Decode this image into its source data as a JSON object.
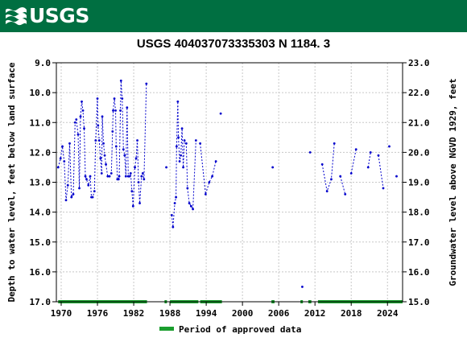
{
  "header": {
    "logo_text": "USGS",
    "brand_color": "#006f41"
  },
  "chart_data": {
    "type": "scatter",
    "title": "USGS 404037073335303 N  1184. 3",
    "ylabel_left": "Depth to water level, feet below land surface",
    "ylabel_right": "Groundwater level above NGVD 1929, feet",
    "xlim": [
      1969.2,
      2026.5
    ],
    "ylim_left": [
      9.0,
      17.0
    ],
    "ylim_right": [
      23.0,
      15.0
    ],
    "datum_offset": 32.0,
    "x_ticks": [
      1970,
      1976,
      1982,
      1988,
      1994,
      2000,
      2006,
      2012,
      2018,
      2024
    ],
    "y_ticks_left": [
      "9.0",
      "10.0",
      "11.0",
      "12.0",
      "13.0",
      "14.0",
      "15.0",
      "16.0",
      "17.0"
    ],
    "y_ticks_right": [
      "23.0",
      "22.0",
      "21.0",
      "20.0",
      "19.0",
      "18.0",
      "17.0",
      "16.0",
      "15.0"
    ],
    "grid": true,
    "series_color": "#0000cc",
    "approved_color": "#1a9e2e",
    "legend_label": "Period of approved data",
    "legend_position": "bottom-center",
    "segments": [
      [
        [
          1969.5,
          12.5
        ],
        [
          1969.9,
          12.2
        ],
        [
          1970.2,
          11.8
        ],
        [
          1970.5,
          12.3
        ],
        [
          1970.8,
          13.6
        ],
        [
          1971.1,
          13.1
        ],
        [
          1971.4,
          11.7
        ],
        [
          1971.7,
          13.5
        ],
        [
          1972.0,
          13.4
        ],
        [
          1972.3,
          11.0
        ],
        [
          1972.5,
          10.9
        ],
        [
          1972.8,
          11.4
        ],
        [
          1973.0,
          13.2
        ],
        [
          1973.2,
          10.8
        ],
        [
          1973.4,
          10.3
        ],
        [
          1973.6,
          10.6
        ],
        [
          1973.8,
          11.2
        ],
        [
          1974.0,
          12.8
        ],
        [
          1974.2,
          12.9
        ],
        [
          1974.5,
          13.1
        ],
        [
          1974.8,
          12.8
        ],
        [
          1975.0,
          13.5
        ],
        [
          1975.2,
          13.5
        ],
        [
          1975.5,
          13.3
        ],
        [
          1975.7,
          11.6
        ],
        [
          1976.0,
          10.2
        ],
        [
          1976.1,
          11.1
        ],
        [
          1976.3,
          11.6
        ],
        [
          1976.5,
          12.2
        ],
        [
          1976.7,
          12.7
        ],
        [
          1976.8,
          10.8
        ],
        [
          1977.0,
          11.7
        ],
        [
          1977.2,
          12.1
        ],
        [
          1977.4,
          12.4
        ],
        [
          1977.7,
          12.8
        ],
        [
          1978.0,
          12.8
        ],
        [
          1978.3,
          12.7
        ],
        [
          1978.5,
          11.3
        ],
        [
          1978.6,
          10.6
        ],
        [
          1978.8,
          10.2
        ],
        [
          1979.0,
          10.6
        ],
        [
          1979.1,
          11.8
        ],
        [
          1979.3,
          12.9
        ],
        [
          1979.5,
          12.9
        ],
        [
          1979.6,
          12.8
        ],
        [
          1979.8,
          10.6
        ],
        [
          1979.9,
          9.6
        ],
        [
          1980.1,
          10.2
        ],
        [
          1980.3,
          11.9
        ],
        [
          1980.5,
          12.1
        ],
        [
          1980.7,
          12.8
        ],
        [
          1980.9,
          10.5
        ],
        [
          1981.1,
          12.8
        ],
        [
          1981.3,
          12.8
        ],
        [
          1981.5,
          12.7
        ],
        [
          1981.7,
          13.3
        ],
        [
          1981.9,
          13.8
        ],
        [
          1982.2,
          12.5
        ],
        [
          1982.4,
          12.2
        ],
        [
          1982.6,
          11.6
        ],
        [
          1982.8,
          13.0
        ],
        [
          1983.0,
          13.7
        ],
        [
          1983.3,
          12.8
        ],
        [
          1983.5,
          12.7
        ],
        [
          1983.7,
          12.9
        ],
        [
          1984.1,
          9.7
        ]
      ],
      [
        [
          1987.4,
          12.5
        ]
      ],
      [
        [
          1988.3,
          14.1
        ],
        [
          1988.5,
          14.5
        ],
        [
          1988.8,
          13.7
        ],
        [
          1989.0,
          13.5
        ],
        [
          1989.1,
          11.8
        ],
        [
          1989.3,
          10.3
        ],
        [
          1989.4,
          11.5
        ],
        [
          1989.6,
          12.3
        ],
        [
          1989.8,
          12.1
        ],
        [
          1990.0,
          11.2
        ],
        [
          1990.2,
          12.5
        ],
        [
          1990.4,
          11.6
        ],
        [
          1990.7,
          11.7
        ],
        [
          1990.9,
          13.2
        ],
        [
          1991.2,
          13.7
        ],
        [
          1991.5,
          13.8
        ],
        [
          1991.8,
          13.9
        ],
        [
          1992.3,
          11.6
        ]
      ],
      [
        [
          1993.0,
          11.7
        ],
        [
          1993.9,
          13.4
        ],
        [
          1994.5,
          13.0
        ],
        [
          1995.0,
          12.8
        ],
        [
          1995.6,
          12.3
        ]
      ],
      [
        [
          1996.4,
          10.7
        ]
      ],
      [
        [
          2005.0,
          12.5
        ]
      ],
      [
        [
          2009.9,
          16.5
        ]
      ],
      [
        [
          2011.2,
          12.0
        ]
      ],
      [
        [
          2013.2,
          12.4
        ],
        [
          2014.0,
          13.3
        ],
        [
          2014.7,
          12.9
        ],
        [
          2015.2,
          11.7
        ]
      ],
      [
        [
          2016.2,
          12.8
        ],
        [
          2017.0,
          13.4
        ]
      ],
      [
        [
          2018.0,
          12.7
        ],
        [
          2018.8,
          11.9
        ]
      ],
      [
        [
          2020.8,
          12.5
        ],
        [
          2021.2,
          12.0
        ]
      ],
      [
        [
          2022.5,
          12.1
        ],
        [
          2023.3,
          13.2
        ]
      ],
      [
        [
          2024.3,
          11.8
        ]
      ],
      [
        [
          2025.5,
          12.8
        ]
      ]
    ],
    "approved_periods": [
      [
        1969.5,
        1984.2
      ],
      [
        1987.1,
        1987.5
      ],
      [
        1988.0,
        1992.7
      ],
      [
        1993.0,
        1996.6
      ],
      [
        2004.8,
        2005.3
      ],
      [
        2009.6,
        2010.0
      ],
      [
        2010.9,
        2011.4
      ],
      [
        2012.5,
        2026.5
      ]
    ]
  }
}
